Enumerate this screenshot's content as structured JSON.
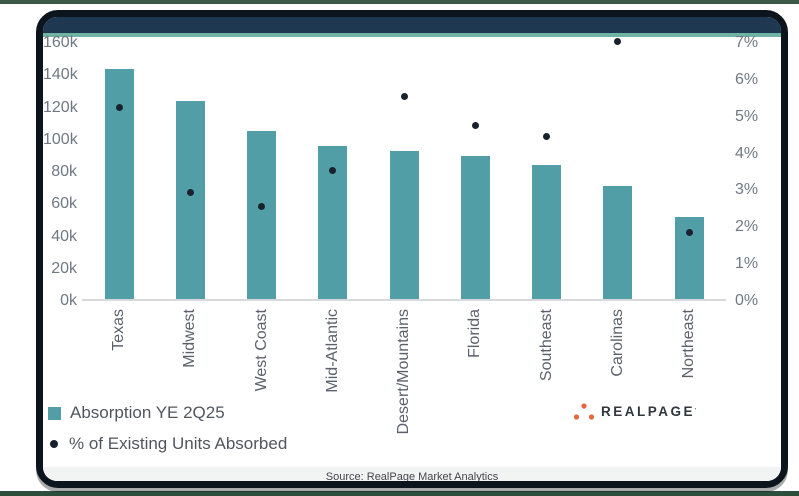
{
  "frame": {
    "top_strip_color": "#3c5a45",
    "bottom_strip_color": "#2d4e3d",
    "border_color": "#0c151d"
  },
  "header": {
    "bar_color": "#1f3851",
    "accent_color": "#6fb4a3"
  },
  "chart_data": {
    "type": "bar",
    "categories": [
      "Texas",
      "Midwest",
      "West Coast",
      "Mid-Atlantic",
      "Desert/Mountains",
      "Florida",
      "Southeast",
      "Carolinas",
      "Northeast"
    ],
    "series": [
      {
        "name": "Absorption YE 2Q25",
        "render": "bar",
        "axis": "left",
        "color": "#529ea7",
        "values": [
          142500,
          123000,
          104000,
          95000,
          92000,
          89000,
          83000,
          70000,
          51000
        ]
      },
      {
        "name": "% of Existing Units Absorbed",
        "render": "scatter",
        "axis": "right",
        "color": "#18222f",
        "values": [
          5.2,
          2.9,
          2.5,
          3.5,
          5.5,
          4.7,
          4.4,
          7.0,
          1.8
        ]
      }
    ],
    "left_axis": {
      "min": 0,
      "max": 160000,
      "step": 20000,
      "tick_labels": [
        "160k",
        "140k",
        "120k",
        "100k",
        "80k",
        "60k",
        "40k",
        "20k",
        "0k"
      ]
    },
    "right_axis": {
      "min": 0,
      "max": 7,
      "step": 1,
      "tick_labels": [
        "7%",
        "6%",
        "5%",
        "4%",
        "3%",
        "2%",
        "1%",
        "0%"
      ]
    },
    "grid": "baseline-only",
    "legend_position": "bottom-left",
    "title": ""
  },
  "legend": {
    "items": [
      {
        "label": "Absorption YE 2Q25",
        "marker": "square",
        "color": "#529ea7"
      },
      {
        "label": "% of Existing Units Absorbed",
        "marker": "dot",
        "color": "#18222f"
      }
    ]
  },
  "branding": {
    "logo_text": "REALPAGE",
    "logo_mark": "'",
    "logo_dots_color": "#e8673f"
  },
  "footer": {
    "source_text": "Source: RealPage Market Analytics"
  }
}
